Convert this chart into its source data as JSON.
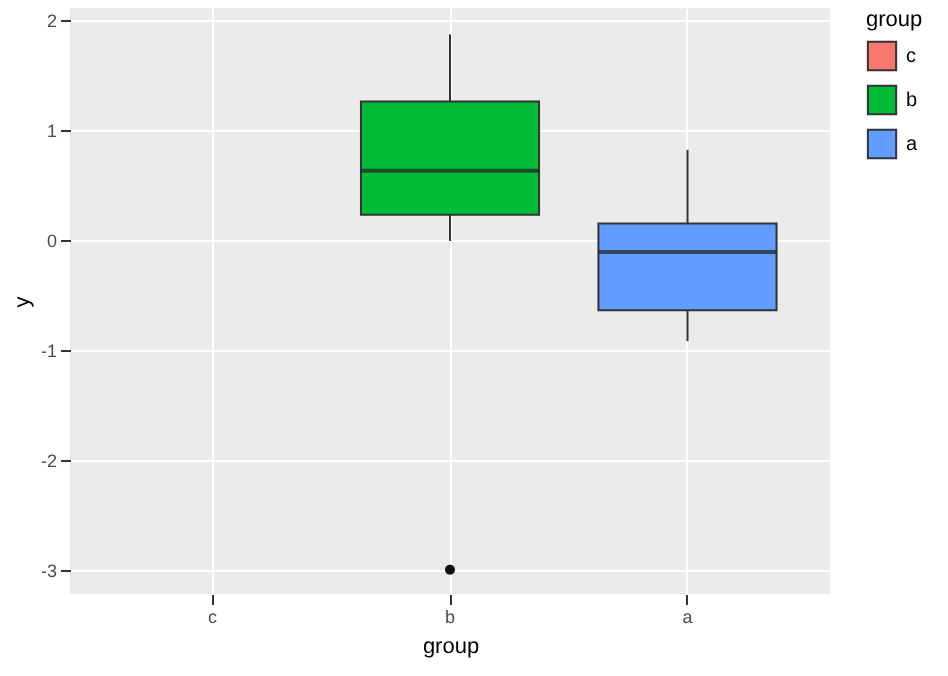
{
  "chart_data": {
    "type": "box",
    "xlabel": "group",
    "ylabel": "y",
    "legend_title": "group",
    "categories": [
      "c",
      "b",
      "a"
    ],
    "series": [
      {
        "name": "c",
        "color": "#f8766d",
        "boxes": [
          null,
          null,
          null
        ]
      },
      {
        "name": "b",
        "color": "#00ba38",
        "boxes": [
          null,
          {
            "low": -0.01,
            "q1": 0.23,
            "median": 0.63,
            "q3": 1.26,
            "high": 1.87,
            "outliers": [
              -3
            ]
          },
          null
        ]
      },
      {
        "name": "a",
        "color": "#619cff",
        "boxes": [
          null,
          null,
          {
            "low": -0.92,
            "q1": -0.64,
            "median": -0.11,
            "q3": 0.15,
            "high": 0.82
          }
        ]
      }
    ],
    "ylim": [
      -3.22,
      2.11
    ],
    "yticks": [
      -3,
      -2,
      -1,
      0,
      1,
      2
    ],
    "grid": true,
    "legend": "right"
  }
}
